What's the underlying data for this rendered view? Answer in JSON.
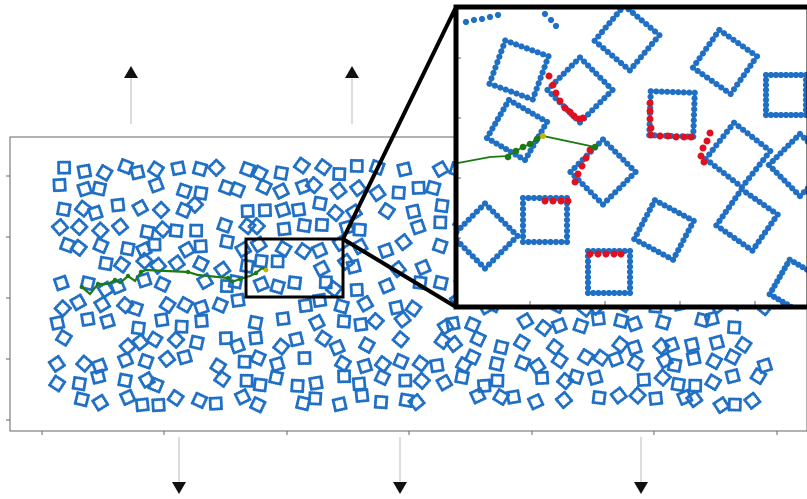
{
  "figure": {
    "description_visible_text": "",
    "colors": {
      "background": "#ffffff",
      "frame": "#555555",
      "square_beads": "#1f6fc5",
      "polymer_chain": "#1b7a12",
      "chain_end": "#c9b400",
      "detached_beads": "#e0101e",
      "zoom_frame": "#000000",
      "arrow": "#111111"
    },
    "icons": {
      "up_arrow": "arrow-up-icon",
      "down_arrow": "arrow-down-icon"
    },
    "panels": {
      "main": {
        "label": "",
        "ticks_y": 5,
        "ticks_x": 7
      },
      "inset": {
        "label": "",
        "ticks_y": 5,
        "ticks_x": 4
      }
    },
    "counts": {
      "upward_force_arrows": 2,
      "downward_force_arrows": 3
    }
  }
}
